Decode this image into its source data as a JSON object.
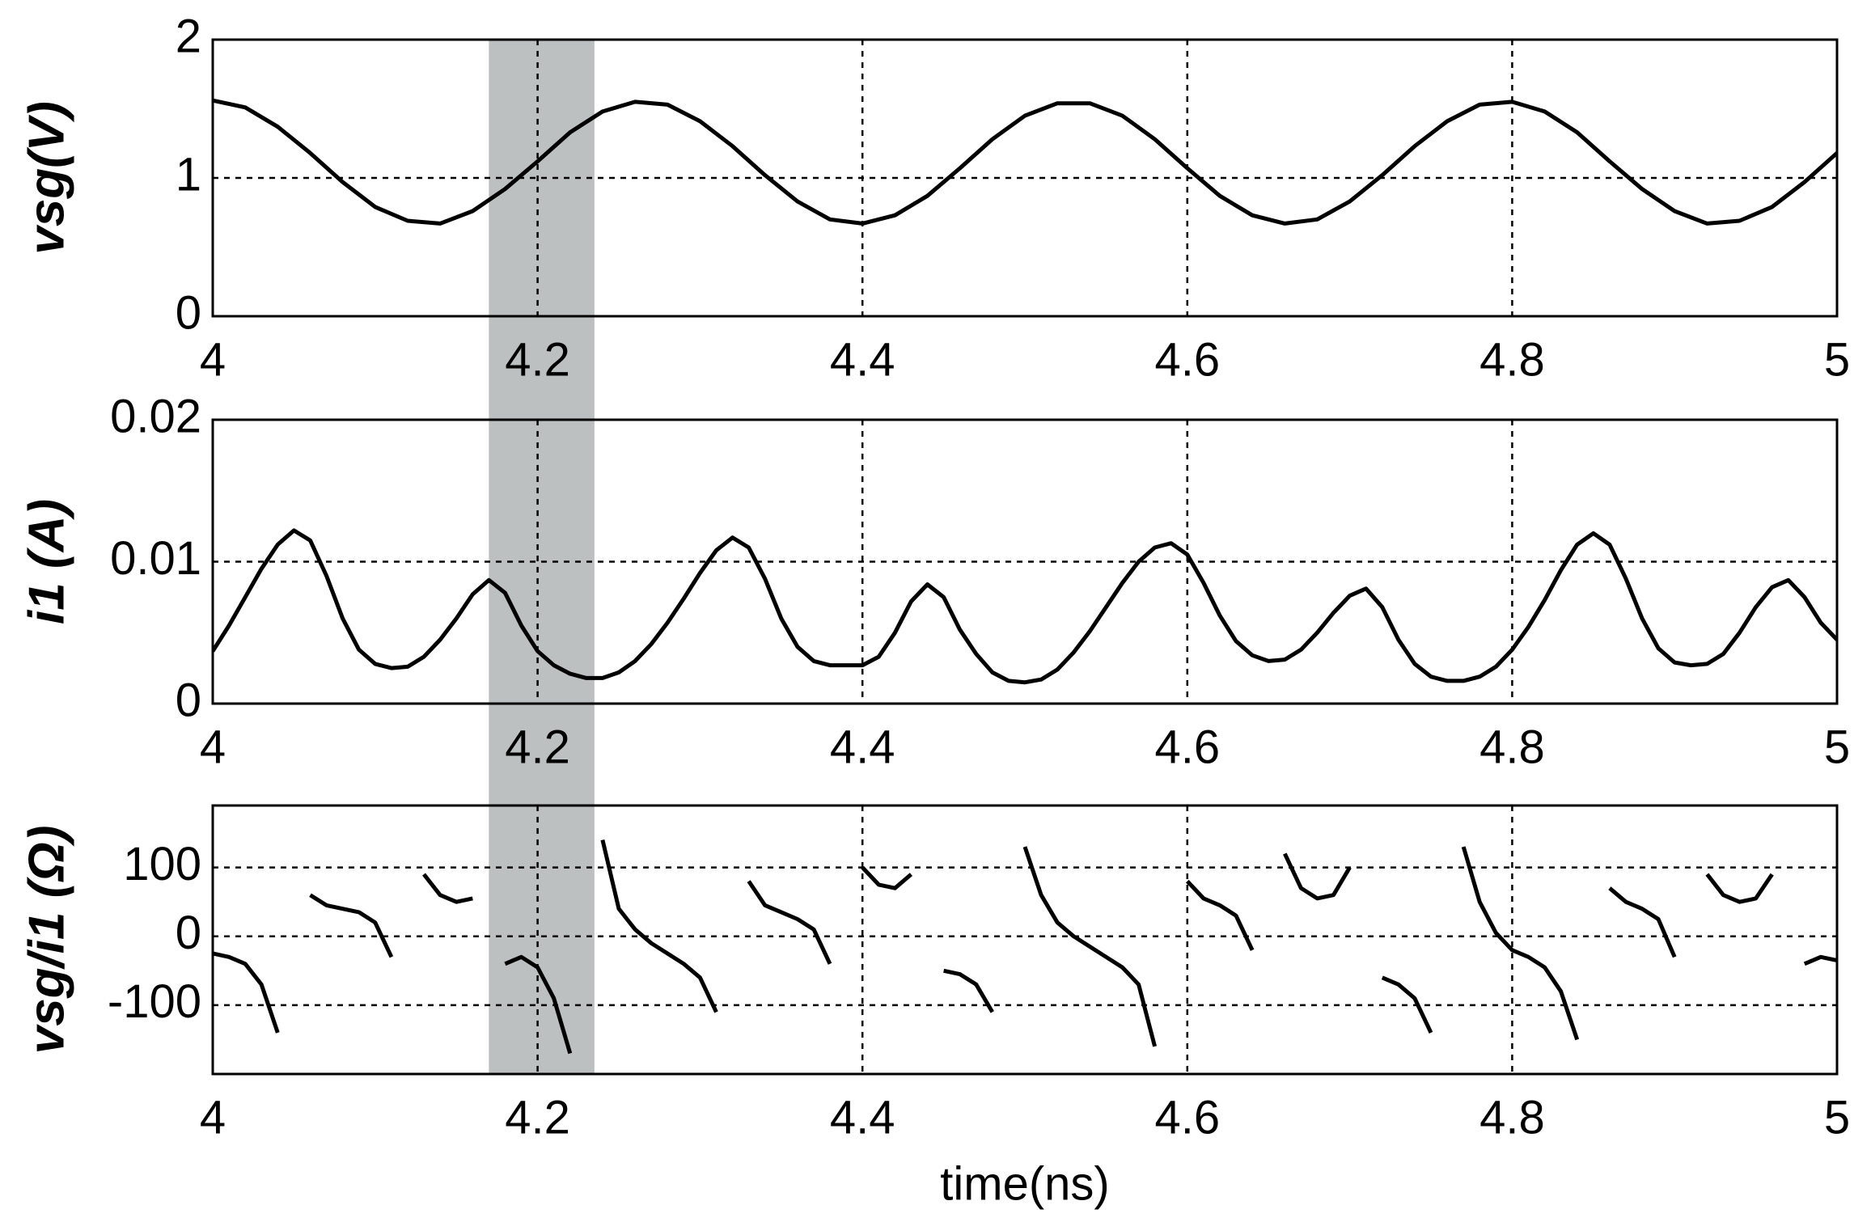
{
  "chart_data": [
    {
      "type": "line",
      "ylabel": "vsg(V)",
      "color": "#000000",
      "highlight": [
        4.17,
        4.235
      ],
      "grid": true,
      "xlim": [
        4,
        5
      ],
      "xticks": [
        4,
        4.2,
        4.4,
        4.6,
        4.8,
        5
      ],
      "ylim": [
        0,
        2
      ],
      "yticks": [
        0,
        1,
        2
      ],
      "x": [
        4,
        4.02,
        4.04,
        4.06,
        4.08,
        4.1,
        4.12,
        4.14,
        4.16,
        4.18,
        4.2,
        4.22,
        4.24,
        4.26,
        4.28,
        4.3,
        4.32,
        4.34,
        4.36,
        4.38,
        4.4,
        4.42,
        4.44,
        4.46,
        4.48,
        4.5,
        4.52,
        4.54,
        4.56,
        4.58,
        4.6,
        4.62,
        4.64,
        4.66,
        4.68,
        4.7,
        4.72,
        4.74,
        4.76,
        4.78,
        4.8,
        4.82,
        4.84,
        4.86,
        4.88,
        4.9,
        4.92,
        4.94,
        4.96,
        4.98,
        5
      ],
      "values": [
        1.56,
        1.51,
        1.37,
        1.18,
        0.97,
        0.79,
        0.69,
        0.67,
        0.76,
        0.92,
        1.12,
        1.33,
        1.48,
        1.55,
        1.53,
        1.41,
        1.23,
        1.02,
        0.83,
        0.7,
        0.67,
        0.73,
        0.87,
        1.07,
        1.28,
        1.45,
        1.54,
        1.54,
        1.45,
        1.28,
        1.07,
        0.87,
        0.73,
        0.67,
        0.7,
        0.83,
        1.02,
        1.23,
        1.41,
        1.53,
        1.55,
        1.48,
        1.33,
        1.12,
        0.92,
        0.76,
        0.67,
        0.69,
        0.79,
        0.97,
        1.18
      ]
    },
    {
      "type": "line",
      "ylabel": "i1 (A)",
      "color": "#000000",
      "grid": true,
      "xlim": [
        4,
        5
      ],
      "xticks": [
        4,
        4.2,
        4.4,
        4.6,
        4.8,
        5
      ],
      "ylim": [
        0,
        0.02
      ],
      "yticks": [
        0,
        0.01,
        0.02
      ],
      "x": [
        4,
        4.01,
        4.02,
        4.03,
        4.04,
        4.05,
        4.06,
        4.07,
        4.08,
        4.09,
        4.1,
        4.11,
        4.12,
        4.13,
        4.14,
        4.15,
        4.16,
        4.17,
        4.18,
        4.19,
        4.2,
        4.21,
        4.22,
        4.23,
        4.24,
        4.25,
        4.26,
        4.27,
        4.28,
        4.29,
        4.3,
        4.31,
        4.32,
        4.33,
        4.34,
        4.35,
        4.36,
        4.37,
        4.38,
        4.39,
        4.4,
        4.41,
        4.42,
        4.43,
        4.44,
        4.45,
        4.46,
        4.47,
        4.48,
        4.49,
        4.5,
        4.51,
        4.52,
        4.53,
        4.54,
        4.55,
        4.56,
        4.57,
        4.58,
        4.59,
        4.6,
        4.61,
        4.62,
        4.63,
        4.64,
        4.65,
        4.66,
        4.67,
        4.68,
        4.69,
        4.7,
        4.71,
        4.72,
        4.73,
        4.74,
        4.75,
        4.76,
        4.77,
        4.78,
        4.79,
        4.8,
        4.81,
        4.82,
        4.83,
        4.84,
        4.85,
        4.86,
        4.87,
        4.88,
        4.89,
        4.9,
        4.91,
        4.92,
        4.93,
        4.94,
        4.95,
        4.96,
        4.97,
        4.98,
        4.99,
        5
      ],
      "values": [
        0.0037,
        0.0055,
        0.0075,
        0.0095,
        0.0112,
        0.0122,
        0.0115,
        0.009,
        0.006,
        0.0038,
        0.0028,
        0.0025,
        0.0026,
        0.0033,
        0.0045,
        0.006,
        0.0077,
        0.0087,
        0.0078,
        0.0055,
        0.0037,
        0.0027,
        0.0021,
        0.0018,
        0.0018,
        0.0022,
        0.003,
        0.0042,
        0.0057,
        0.0074,
        0.0092,
        0.0108,
        0.0117,
        0.011,
        0.0088,
        0.006,
        0.004,
        0.003,
        0.0027,
        0.0027,
        0.0027,
        0.0033,
        0.005,
        0.0072,
        0.0084,
        0.0075,
        0.0052,
        0.0035,
        0.0022,
        0.0016,
        0.0015,
        0.0017,
        0.0024,
        0.0036,
        0.0051,
        0.0068,
        0.0085,
        0.01,
        0.011,
        0.0113,
        0.0105,
        0.0085,
        0.0062,
        0.0044,
        0.0034,
        0.003,
        0.0031,
        0.0038,
        0.005,
        0.0064,
        0.0076,
        0.0081,
        0.0068,
        0.0045,
        0.0028,
        0.0019,
        0.0016,
        0.0016,
        0.0019,
        0.0026,
        0.0038,
        0.0054,
        0.0073,
        0.0094,
        0.0112,
        0.012,
        0.0112,
        0.0088,
        0.006,
        0.0039,
        0.0029,
        0.0027,
        0.0028,
        0.0035,
        0.005,
        0.0068,
        0.0082,
        0.0087,
        0.0075,
        0.0057,
        0.0045
      ]
    },
    {
      "type": "line",
      "ylabel": "vsg/i1 (Ω)",
      "xlabel": "time(ns)",
      "color": "#000000",
      "grid": true,
      "xlim": [
        4,
        5
      ],
      "xticks": [
        4,
        4.2,
        4.4,
        4.6,
        4.8,
        5
      ],
      "ylim": [
        -200,
        190
      ],
      "yticks": [
        -100,
        0,
        100
      ],
      "x": [
        4,
        4.01,
        4.02,
        4.03,
        4.04,
        4.05,
        4.06,
        4.07,
        4.08,
        4.09,
        4.1,
        4.11,
        4.12,
        4.13,
        4.14,
        4.15,
        4.16,
        4.17,
        4.18,
        4.19,
        4.2,
        4.21,
        4.22,
        4.23,
        4.24,
        4.25,
        4.26,
        4.27,
        4.28,
        4.29,
        4.3,
        4.31,
        4.32,
        4.33,
        4.34,
        4.35,
        4.36,
        4.37,
        4.38,
        4.39,
        4.4,
        4.41,
        4.42,
        4.43,
        4.44,
        4.45,
        4.46,
        4.47,
        4.48,
        4.49,
        4.5,
        4.51,
        4.52,
        4.53,
        4.54,
        4.55,
        4.56,
        4.57,
        4.58,
        4.59,
        4.6,
        4.61,
        4.62,
        4.63,
        4.64,
        4.65,
        4.66,
        4.67,
        4.68,
        4.69,
        4.7,
        4.71,
        4.72,
        4.73,
        4.74,
        4.75,
        4.76,
        4.77,
        4.78,
        4.79,
        4.8,
        4.81,
        4.82,
        4.83,
        4.84,
        4.85,
        4.86,
        4.87,
        4.88,
        4.89,
        4.9,
        4.91,
        4.92,
        4.93,
        4.94,
        4.95,
        4.96,
        4.97,
        4.98,
        4.99,
        5
      ],
      "values": [
        -25,
        -30,
        -40,
        -70,
        -140,
        null,
        60,
        45,
        40,
        35,
        20,
        -30,
        null,
        90,
        60,
        50,
        55,
        null,
        -40,
        -30,
        -45,
        -90,
        -170,
        null,
        140,
        40,
        10,
        -10,
        -25,
        -40,
        -60,
        -110,
        null,
        80,
        45,
        35,
        25,
        10,
        -40,
        null,
        100,
        75,
        70,
        90,
        null,
        -50,
        -55,
        -70,
        -110,
        null,
        130,
        60,
        20,
        0,
        -15,
        -30,
        -45,
        -70,
        -160,
        null,
        80,
        55,
        45,
        30,
        -20,
        null,
        120,
        70,
        55,
        60,
        100,
        null,
        -60,
        -70,
        -90,
        -140,
        null,
        130,
        50,
        5,
        -20,
        -30,
        -45,
        -80,
        -150,
        null,
        70,
        50,
        40,
        25,
        -30,
        null,
        90,
        60,
        50,
        55,
        90,
        null,
        -40,
        -30,
        -35
      ]
    }
  ]
}
